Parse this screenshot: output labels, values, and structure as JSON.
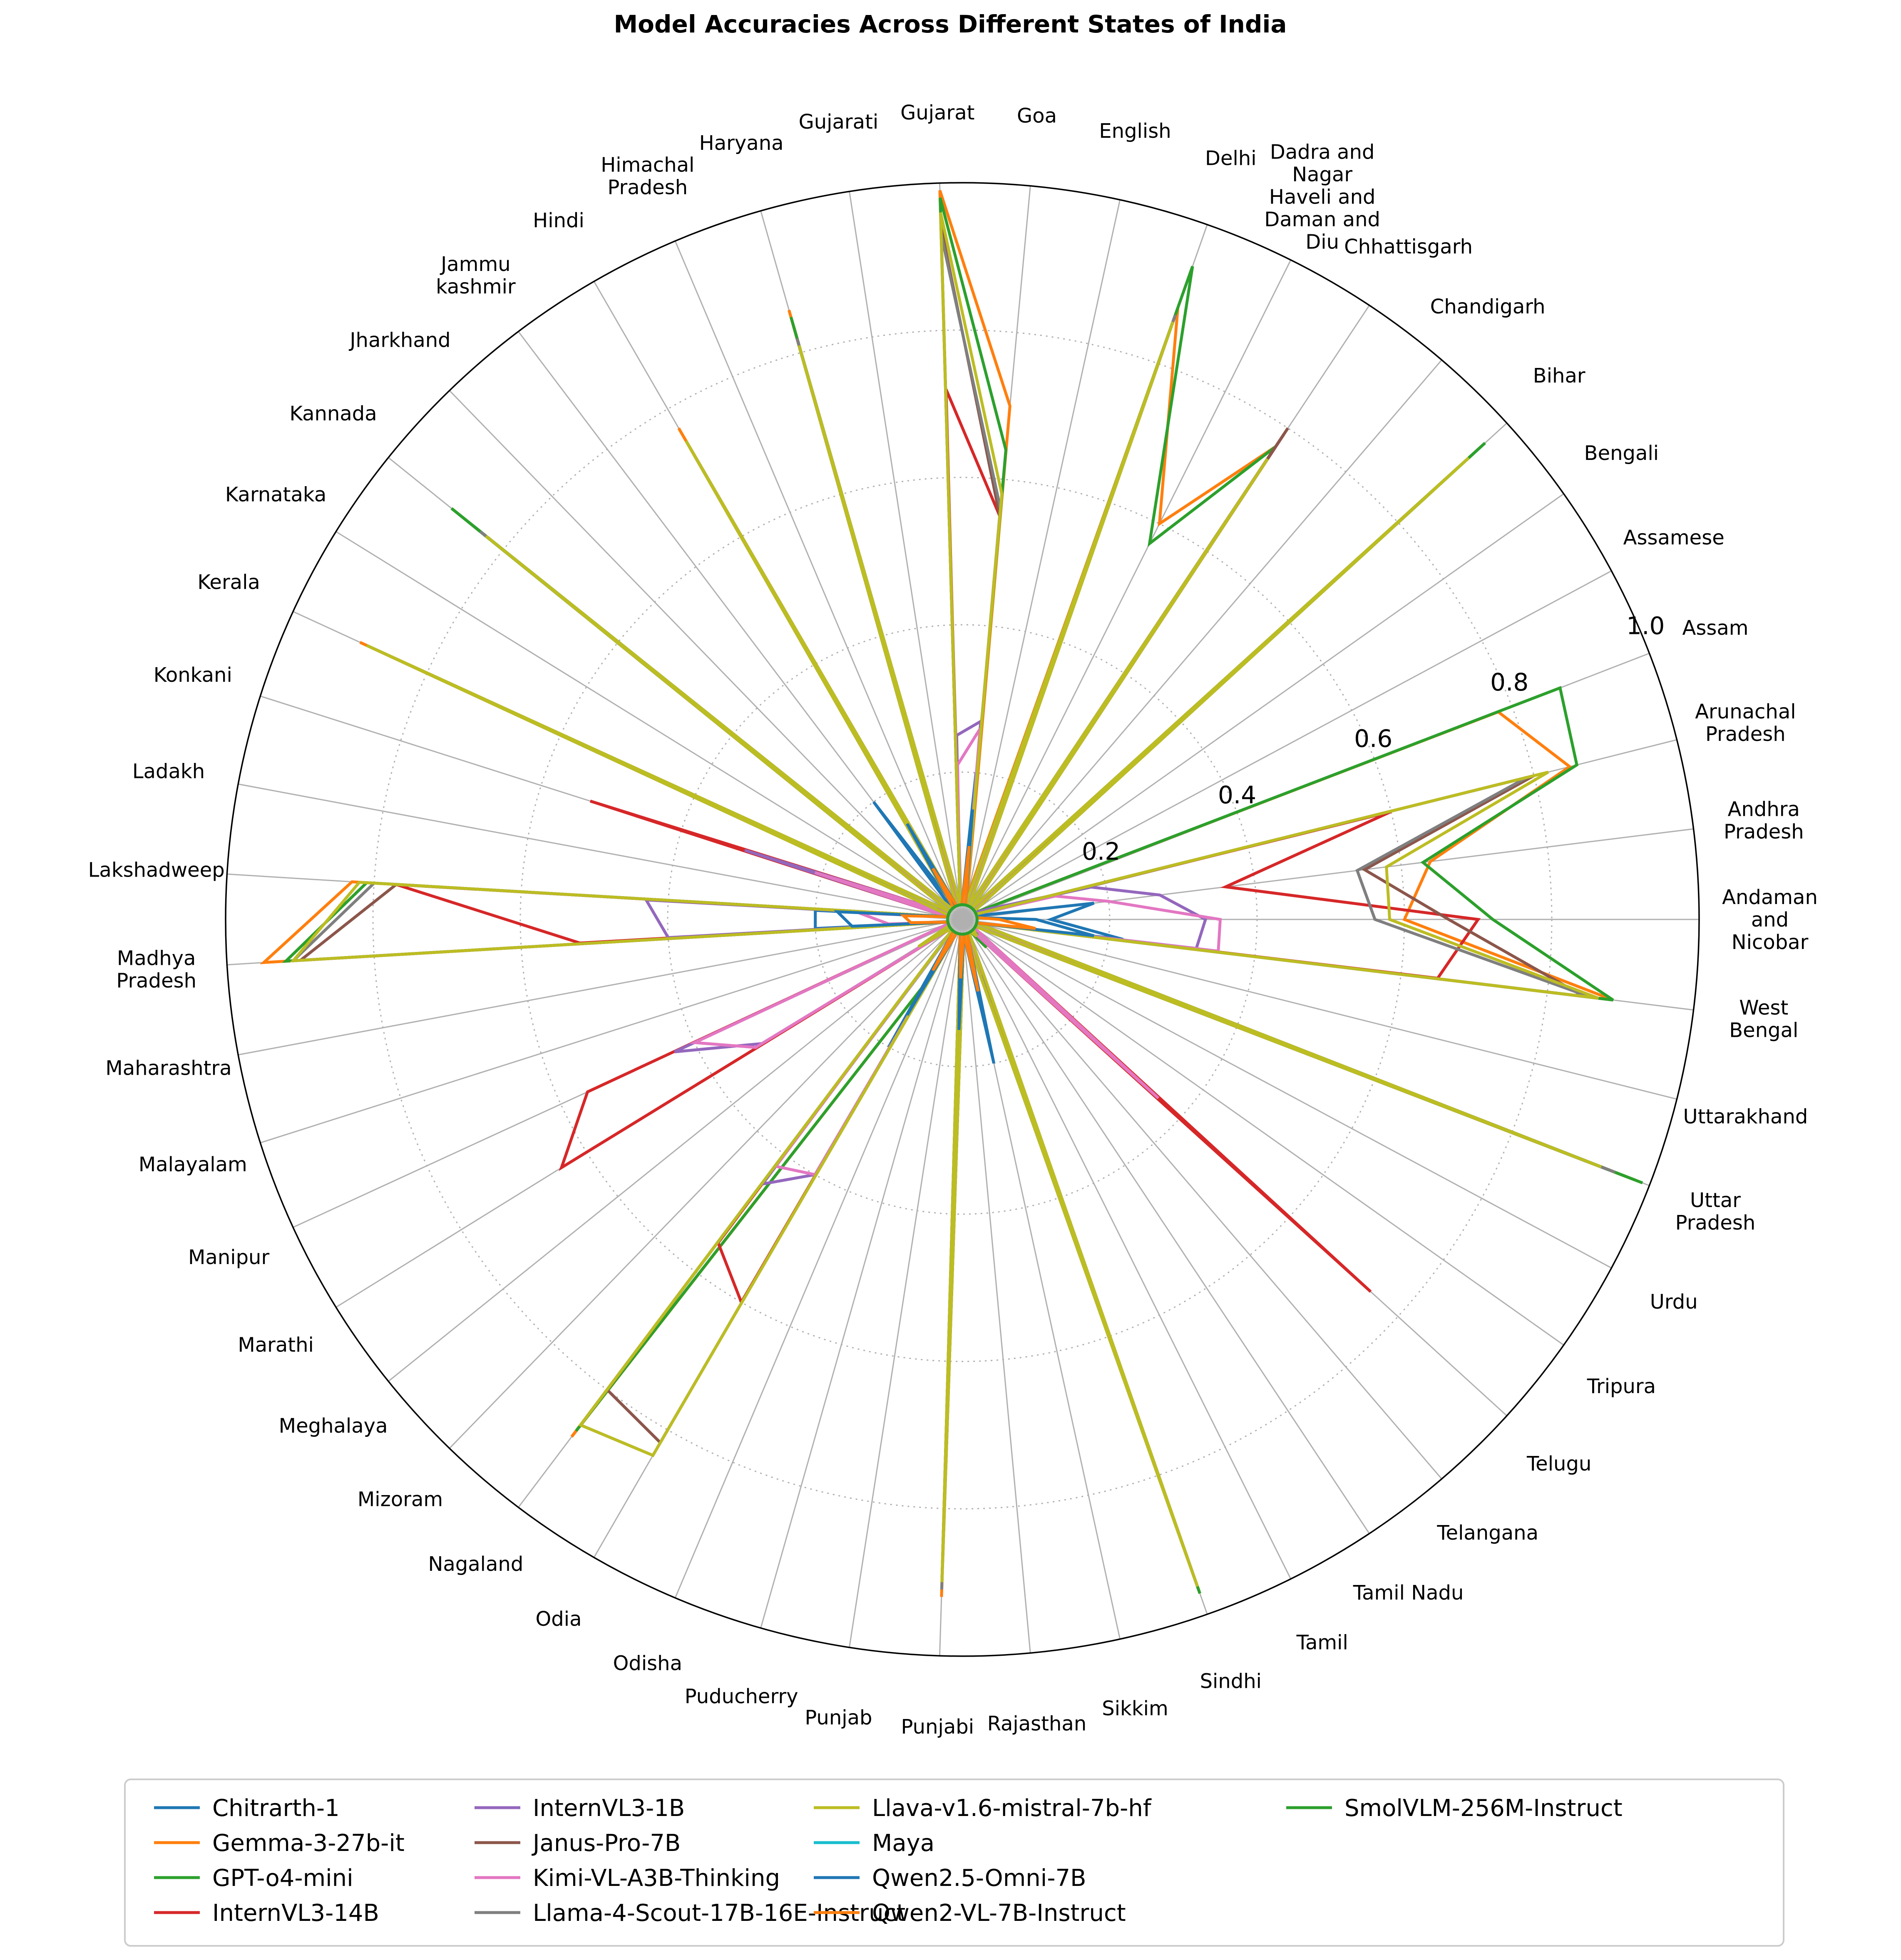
{
  "chart_data": {
    "type": "radar",
    "title": "Model Accuracies Across Different States of India",
    "rlim": [
      0,
      1.0
    ],
    "r_ticks": [
      0.2,
      0.4,
      0.6,
      0.8,
      1.0
    ],
    "r_tick_labels": [
      "0.2",
      "0.4",
      "0.6",
      "0.8",
      "1.0"
    ],
    "grid": true,
    "legend_position": "bottom",
    "categories": [
      "Andaman and Nicobar",
      "Andhra Pradesh",
      "Arunachal Pradesh",
      "Assam",
      "Assamese",
      "Bengali",
      "Bihar",
      "Chandigarh",
      "Chhattisgarh",
      "Dadra and Nagar Haveli and Daman and Diu",
      "Delhi",
      "English",
      "Goa",
      "Gujarat",
      "Gujarati",
      "Haryana",
      "Himachal Pradesh",
      "Hindi",
      "Jammu kashmir",
      "Jharkhand",
      "Kannada",
      "Karnataka",
      "Kerala",
      "Konkani",
      "Ladakh",
      "Lakshadweep",
      "Madhya Pradesh",
      "Maharashtra",
      "Malayalam",
      "Manipur",
      "Marathi",
      "Meghalaya",
      "Mizoram",
      "Nagaland",
      "Odia",
      "Odisha",
      "Puducherry",
      "Punjab",
      "Punjabi",
      "Rajasthan",
      "Sikkim",
      "Sindhi",
      "Tamil",
      "Tamil Nadu",
      "Telangana",
      "Telugu",
      "Tripura",
      "Urdu",
      "Uttar Pradesh",
      "Uttarakhand",
      "West Bengal"
    ],
    "category_lines": [
      [
        "Andaman",
        "and",
        "Nicobar"
      ],
      [
        "Andhra",
        "Pradesh"
      ],
      [
        "Arunachal",
        "Pradesh"
      ],
      [
        "Assam"
      ],
      [
        "Assamese"
      ],
      [
        "Bengali"
      ],
      [
        "Bihar"
      ],
      [
        "Chandigarh"
      ],
      [
        "Chhattisgarh"
      ],
      [
        "Dadra and",
        "Nagar",
        "Haveli and",
        "Daman and",
        "Diu"
      ],
      [
        "Delhi"
      ],
      [
        "English"
      ],
      [
        "Goa"
      ],
      [
        "Gujarat"
      ],
      [
        "Gujarati"
      ],
      [
        "Haryana"
      ],
      [
        "Himachal",
        "Pradesh"
      ],
      [
        "Hindi"
      ],
      [
        "Jammu",
        "kashmir"
      ],
      [
        "Jharkhand"
      ],
      [
        "Kannada"
      ],
      [
        "Karnataka"
      ],
      [
        "Kerala"
      ],
      [
        "Konkani"
      ],
      [
        "Ladakh"
      ],
      [
        "Lakshadweep"
      ],
      [
        "Madhya",
        "Pradesh"
      ],
      [
        "Maharashtra"
      ],
      [
        "Malayalam"
      ],
      [
        "Manipur"
      ],
      [
        "Marathi"
      ],
      [
        "Meghalaya"
      ],
      [
        "Mizoram"
      ],
      [
        "Nagaland"
      ],
      [
        "Odia"
      ],
      [
        "Odisha"
      ],
      [
        "Puducherry"
      ],
      [
        "Punjab"
      ],
      [
        "Punjabi"
      ],
      [
        "Rajasthan"
      ],
      [
        "Sikkim"
      ],
      [
        "Sindhi"
      ],
      [
        "Tamil"
      ],
      [
        "Tamil Nadu"
      ],
      [
        "Telangana"
      ],
      [
        "Telugu"
      ],
      [
        "Tripura"
      ],
      [
        "Urdu"
      ],
      [
        "Uttar",
        "Pradesh"
      ],
      [
        "Uttarakhand"
      ],
      [
        "West",
        "Bengal"
      ]
    ],
    "series": [
      {
        "name": "Chitrarth-1",
        "color": "#1f77b4",
        "values": [
          0.12,
          0.18,
          0.02,
          0.02,
          0.02,
          0.02,
          0.02,
          0.02,
          0.02,
          0.02,
          0.02,
          0.02,
          0.2,
          0.02,
          0.02,
          0.02,
          0.02,
          0.02,
          0.2,
          0.02,
          0.02,
          0.02,
          0.02,
          0.02,
          0.02,
          0.2,
          0.2,
          0.02,
          0.02,
          0.02,
          0.02,
          0.02,
          0.02,
          0.02,
          0.2,
          0.02,
          0.02,
          0.02,
          0.2,
          0.02,
          0.2,
          0.02,
          0.02,
          0.02,
          0.02,
          0.02,
          0.02,
          0.02,
          0.02,
          0.02,
          0.22
        ]
      },
      {
        "name": "Gemma-3-27b-it",
        "color": "#ff7f0e",
        "values": [
          0.6,
          0.64,
          0.85,
          0.78,
          0.02,
          0.02,
          0.9,
          0.02,
          0.77,
          0.6,
          0.88,
          0.03,
          0.7,
          0.99,
          0.02,
          0.86,
          0.02,
          0.77,
          0.02,
          0.02,
          0.82,
          0.02,
          0.9,
          0.02,
          0.02,
          0.83,
          0.95,
          0.02,
          0.02,
          0.02,
          0.07,
          0.02,
          0.02,
          0.88,
          0.1,
          0.02,
          0.02,
          0.02,
          0.92,
          0.02,
          0.02,
          0.97,
          0.02,
          0.02,
          0.05,
          0.02,
          0.02,
          0.02,
          0.98,
          0.02,
          0.89
        ]
      },
      {
        "name": "GPT-o4-mini",
        "color": "#2ca02c",
        "values": [
          0.72,
          0.63,
          0.86,
          0.87,
          0.02,
          0.02,
          0.96,
          0.02,
          0.77,
          0.57,
          0.94,
          0.02,
          0.64,
          0.98,
          0.02,
          0.85,
          0.02,
          0.74,
          0.02,
          0.02,
          0.89,
          0.02,
          0.89,
          0.02,
          0.02,
          0.81,
          0.92,
          0.02,
          0.02,
          0.02,
          0.07,
          0.02,
          0.02,
          0.87,
          0.1,
          0.02,
          0.02,
          0.02,
          0.82,
          0.02,
          0.02,
          0.97,
          0.02,
          0.02,
          0.05,
          0.02,
          0.02,
          0.02,
          0.99,
          0.02,
          0.89
        ]
      },
      {
        "name": "InternVL3-14B",
        "color": "#d62728",
        "values": [
          0.7,
          0.36,
          0.6,
          0.02,
          0.02,
          0.02,
          0.74,
          0.02,
          0.79,
          0.02,
          0.45,
          0.02,
          0.55,
          0.72,
          0.02,
          0.39,
          0.02,
          0.74,
          0.02,
          0.02,
          0.57,
          0.02,
          0.02,
          0.53,
          0.02,
          0.77,
          0.52,
          0.02,
          0.02,
          0.56,
          0.64,
          0.02,
          0.02,
          0.55,
          0.6,
          0.02,
          0.02,
          0.02,
          0.62,
          0.02,
          0.02,
          0.82,
          0.02,
          0.02,
          0.02,
          0.75,
          0.02,
          0.02,
          0.7,
          0.02,
          0.65
        ]
      },
      {
        "name": "InternVL3-1B",
        "color": "#9467bd",
        "values": [
          0.33,
          0.27,
          0.18,
          0.04,
          0.02,
          0.02,
          0.06,
          0.02,
          0.3,
          0.02,
          0.19,
          0.02,
          0.27,
          0.25,
          0.02,
          0.28,
          0.02,
          0.37,
          0.02,
          0.02,
          0.32,
          0.02,
          0.02,
          0.31,
          0.02,
          0.43,
          0.4,
          0.02,
          0.02,
          0.43,
          0.32,
          0.02,
          0.02,
          0.45,
          0.4,
          0.02,
          0.02,
          0.02,
          0.48,
          0.02,
          0.02,
          0.12,
          0.02,
          0.02,
          0.02,
          0.33,
          0.02,
          0.02,
          0.33,
          0.02,
          0.32
        ]
      },
      {
        "name": "Janus-Pro-7B",
        "color": "#8c564b",
        "values": [
          0.66,
          0.55,
          0.8,
          0.02,
          0.02,
          0.02,
          0.88,
          0.02,
          0.8,
          0.02,
          0.87,
          0.02,
          0.55,
          0.94,
          0.02,
          0.8,
          0.02,
          0.74,
          0.02,
          0.02,
          0.81,
          0.02,
          0.86,
          0.02,
          0.02,
          0.77,
          0.9,
          0.02,
          0.02,
          0.02,
          0.07,
          0.02,
          0.02,
          0.8,
          0.82,
          0.02,
          0.02,
          0.02,
          0.9,
          0.02,
          0.02,
          0.94,
          0.02,
          0.02,
          0.03,
          0.02,
          0.02,
          0.02,
          0.92,
          0.02,
          0.85
        ]
      },
      {
        "name": "Kimi-VL-A3B-Thinking",
        "color": "#e377c2",
        "values": [
          0.35,
          0.2,
          0.13,
          0.02,
          0.02,
          0.02,
          0.06,
          0.02,
          0.26,
          0.02,
          0.17,
          0.02,
          0.26,
          0.21,
          0.02,
          0.1,
          0.02,
          0.25,
          0.02,
          0.02,
          0.27,
          0.02,
          0.02,
          0.21,
          0.02,
          0.14,
          0.1,
          0.02,
          0.02,
          0.4,
          0.33,
          0.02,
          0.02,
          0.42,
          0.4,
          0.02,
          0.02,
          0.02,
          0.46,
          0.02,
          0.02,
          0.08,
          0.02,
          0.02,
          0.02,
          0.36,
          0.02,
          0.02,
          0.36,
          0.02,
          0.35
        ]
      },
      {
        "name": "Llama-4-Scout-17B-16E-Instruct",
        "color": "#7f7f7f",
        "values": [
          0.56,
          0.54,
          0.79,
          0.02,
          0.02,
          0.02,
          0.88,
          0.02,
          0.74,
          0.02,
          0.87,
          0.02,
          0.56,
          0.93,
          0.02,
          0.82,
          0.02,
          0.75,
          0.02,
          0.02,
          0.84,
          0.02,
          0.87,
          0.02,
          0.02,
          0.8,
          0.91,
          0.02,
          0.02,
          0.02,
          0.07,
          0.02,
          0.02,
          0.86,
          0.84,
          0.02,
          0.02,
          0.02,
          0.91,
          0.02,
          0.02,
          0.95,
          0.02,
          0.02,
          0.03,
          0.02,
          0.02,
          0.02,
          0.95,
          0.02,
          0.86
        ]
      },
      {
        "name": "Llava-v1.6-mistral-7b-hf",
        "color": "#bcbd22",
        "values": [
          0.58,
          0.58,
          0.82,
          0.02,
          0.02,
          0.02,
          0.93,
          0.02,
          0.75,
          0.02,
          0.86,
          0.02,
          0.58,
          0.96,
          0.02,
          0.81,
          0.02,
          0.75,
          0.02,
          0.02,
          0.83,
          0.02,
          0.89,
          0.02,
          0.02,
          0.82,
          0.91,
          0.02,
          0.02,
          0.02,
          0.07,
          0.02,
          0.02,
          0.86,
          0.84,
          0.02,
          0.02,
          0.02,
          0.9,
          0.02,
          0.02,
          0.96,
          0.02,
          0.02,
          0.03,
          0.02,
          0.02,
          0.02,
          0.93,
          0.02,
          0.87
        ]
      },
      {
        "name": "Maya",
        "color": "#17becf",
        "values": [
          0.02,
          0.02,
          0.02,
          0.02,
          0.02,
          0.02,
          0.02,
          0.02,
          0.02,
          0.02,
          0.02,
          0.02,
          0.02,
          0.02,
          0.02,
          0.02,
          0.02,
          0.02,
          0.02,
          0.02,
          0.02,
          0.02,
          0.02,
          0.02,
          0.02,
          0.02,
          0.02,
          0.02,
          0.02,
          0.02,
          0.02,
          0.02,
          0.02,
          0.02,
          0.02,
          0.02,
          0.02,
          0.02,
          0.02,
          0.02,
          0.02,
          0.02,
          0.02,
          0.02,
          0.02,
          0.02,
          0.02,
          0.02,
          0.02,
          0.02,
          0.02
        ]
      },
      {
        "name": "Qwen2.5-Omni-7B",
        "color": "#1f77b4",
        "values": [
          0.1,
          0.02,
          0.02,
          0.02,
          0.02,
          0.02,
          0.02,
          0.02,
          0.02,
          0.02,
          0.02,
          0.02,
          0.15,
          0.02,
          0.02,
          0.02,
          0.02,
          0.15,
          0.02,
          0.02,
          0.02,
          0.02,
          0.02,
          0.02,
          0.02,
          0.17,
          0.15,
          0.02,
          0.02,
          0.02,
          0.02,
          0.02,
          0.02,
          0.02,
          0.15,
          0.02,
          0.02,
          0.02,
          0.15,
          0.02,
          0.18,
          0.02,
          0.02,
          0.02,
          0.02,
          0.02,
          0.02,
          0.02,
          0.02,
          0.02,
          0.18
        ]
      },
      {
        "name": "Qwen2-VL-7B-Instruct",
        "color": "#ff7f0e",
        "values": [
          0.05,
          0.02,
          0.02,
          0.02,
          0.02,
          0.02,
          0.02,
          0.02,
          0.02,
          0.02,
          0.02,
          0.02,
          0.1,
          0.02,
          0.02,
          0.02,
          0.02,
          0.08,
          0.02,
          0.02,
          0.02,
          0.02,
          0.02,
          0.02,
          0.02,
          0.08,
          0.07,
          0.02,
          0.02,
          0.02,
          0.02,
          0.02,
          0.02,
          0.02,
          0.08,
          0.02,
          0.02,
          0.02,
          0.08,
          0.02,
          0.1,
          0.02,
          0.02,
          0.02,
          0.02,
          0.02,
          0.02,
          0.02,
          0.02,
          0.02,
          0.1
        ]
      },
      {
        "name": "SmolVLM-256M-Instruct",
        "color": "#2ca02c",
        "values": [
          0.02,
          0.02,
          0.02,
          0.02,
          0.02,
          0.02,
          0.02,
          0.02,
          0.02,
          0.02,
          0.02,
          0.02,
          0.02,
          0.02,
          0.02,
          0.02,
          0.02,
          0.02,
          0.02,
          0.02,
          0.02,
          0.02,
          0.02,
          0.02,
          0.02,
          0.02,
          0.02,
          0.02,
          0.02,
          0.02,
          0.02,
          0.02,
          0.02,
          0.02,
          0.02,
          0.02,
          0.02,
          0.02,
          0.02,
          0.02,
          0.02,
          0.02,
          0.02,
          0.02,
          0.02,
          0.02,
          0.02,
          0.02,
          0.02,
          0.02,
          0.02
        ]
      }
    ]
  }
}
